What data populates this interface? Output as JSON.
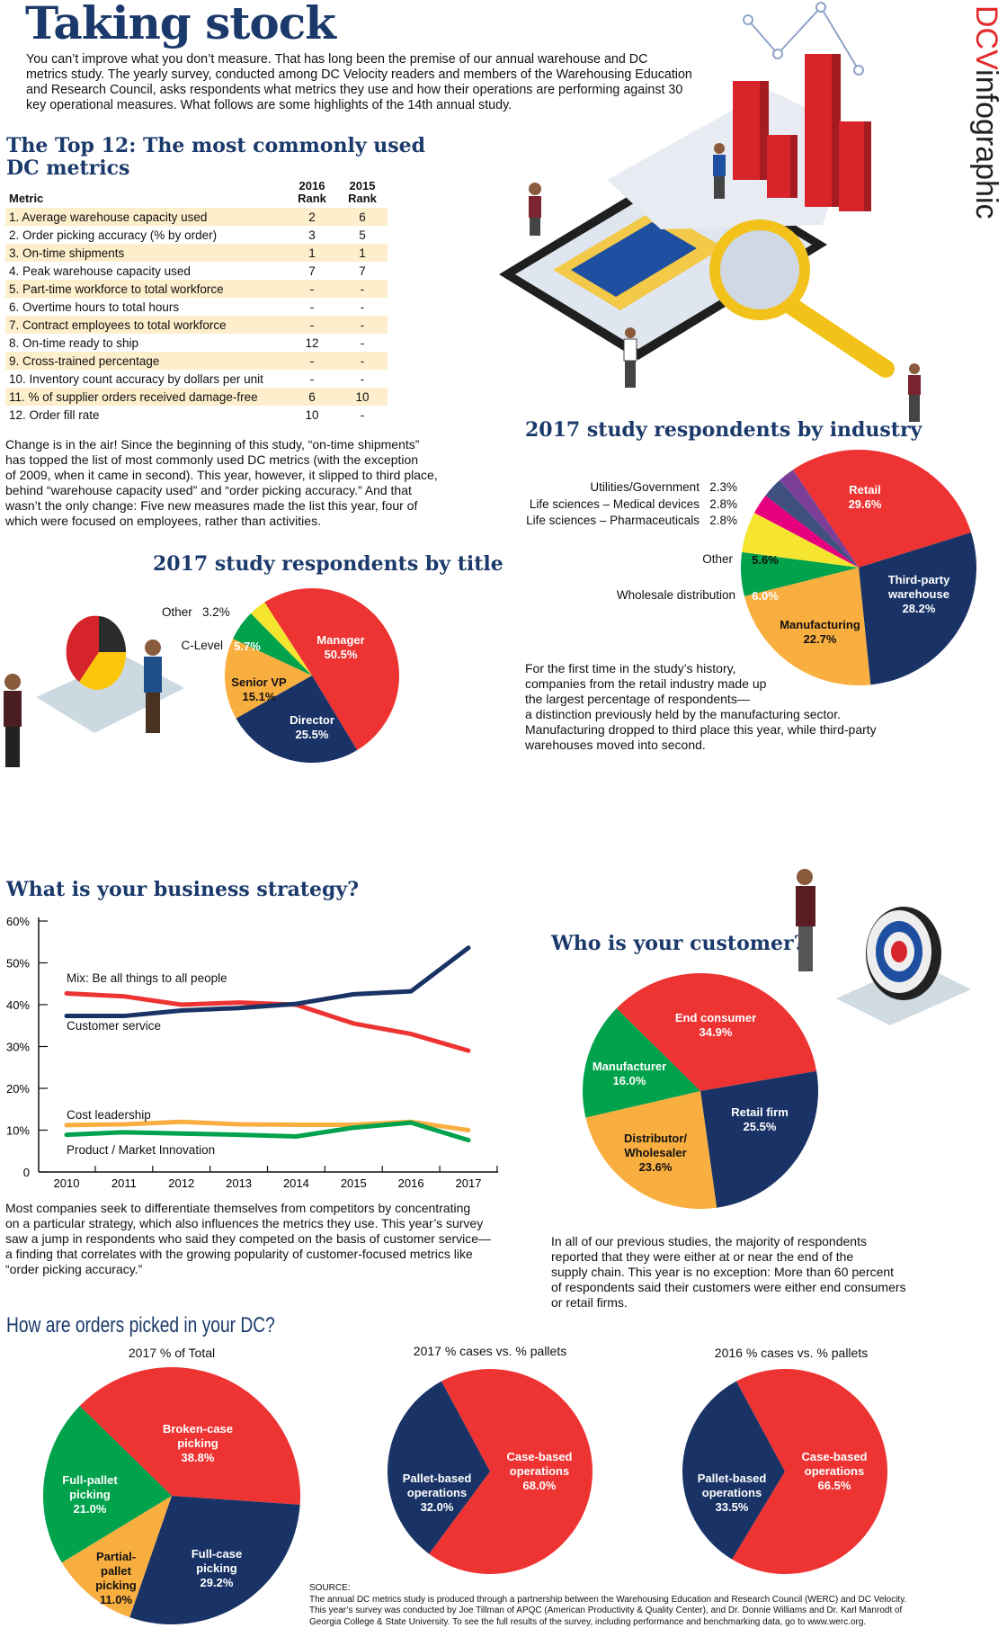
{
  "header": {
    "title": "Taking stock",
    "brand_red": "DCV",
    "brand_dark": "infographic",
    "intro": "You can’t improve what you don’t measure. That has long been the premise of our annual warehouse and DC\nmetrics study. The yearly survey, conducted among DC Velocity readers and members of the Warehousing Education\nand Research Council, asks respondents what metrics they use and how their operations are performing against 30\nkey operational measures. What follows are some highlights of the 14th annual study."
  },
  "top12": {
    "title": "The Top 12: The most commonly used\nDC metrics",
    "columns": [
      "Metric",
      "2016\nRank",
      "2015\nRank"
    ],
    "rows": [
      [
        "1. Average warehouse capacity used",
        "2",
        "6"
      ],
      [
        "2. Order picking accuracy (% by order)",
        "3",
        "5"
      ],
      [
        "3. On-time shipments",
        "1",
        "1"
      ],
      [
        "4. Peak warehouse capacity used",
        "7",
        "7"
      ],
      [
        "5. Part-time workforce to total workforce",
        "-",
        "-"
      ],
      [
        "6. Overtime hours to total hours",
        "-",
        "-"
      ],
      [
        "7. Contract employees to total workforce",
        "-",
        "-"
      ],
      [
        "8. On-time ready to ship",
        "12",
        "-"
      ],
      [
        "9. Cross-trained percentage",
        "-",
        "-"
      ],
      [
        "10. Inventory count accuracy by dollars per unit",
        "-",
        "-"
      ],
      [
        "11. % of supplier orders received damage-free",
        "6",
        "10"
      ],
      [
        "12. Order fill rate",
        "10",
        "-"
      ]
    ],
    "paragraph": "Change is in the air! Since the beginning of this study, “on-time shipments”\nhas topped the list of most commonly used DC metrics (with the exception\nof 2009, when it came in second). This year, however, it slipped to third place,\nbehind “warehouse capacity used” and “order picking accuracy.” And that\nwasn’t the only change: Five new measures made the list this year, four of\nwhich were focused on employees, rather than activities."
  },
  "industry_text": "For the first time in the study’s history,\ncompanies from the retail industry made up\nthe largest percentage of respondents—\na distinction previously held by the manufacturing sector.\nManufacturing dropped to third place this year, while third-party\nwarehouses moved into second.",
  "strategy_text": "Most companies seek to differentiate themselves from competitors by concentrating\non a particular strategy, which also influences the metrics they use. This year’s survey\nsaw a jump in respondents who said they competed on the basis of customer service—\na finding that correlates with the growing popularity of customer-focused metrics like\n“order picking accuracy.”",
  "customer_text": "In all of our previous studies, the majority of respondents\nreported that they were either at or near the end of the\nsupply chain. This year is no exception: More than 60 percent\nof respondents said their customers were either end consumers\nor retail firms.",
  "picking_title": "How are orders picked in your DC?",
  "source": {
    "label": "SOURCE:",
    "text": "The annual DC metrics study is produced through a partnership between the Warehousing Education and Research Council (WERC) and DC Velocity.\nThis year’s survey was conducted by Joe Tillman of APQC (American Productivity & Quality Center), and Dr. Donnie Williams and Dr. Karl Manrodt of\nGeorgia College & State University. To see the full results of the survey, including performance and benchmarking data, go to www.werc.org."
  },
  "colors": {
    "title_navy": "#1b3a6b",
    "red": "#ee3333",
    "navy": "#1a3366",
    "orange": "#f9ae40",
    "green": "#00a24b",
    "yellow": "#f5e52f",
    "pink": "#e6007e",
    "slate": "#3f4f7f",
    "purple": "#7b3f98"
  },
  "chart_data": [
    {
      "type": "pie",
      "title": "2017 study respondents by title",
      "start_deg": -33,
      "slices": [
        {
          "label": "Manager",
          "value": 50.5,
          "display": "50.5%",
          "color": "#ee3333"
        },
        {
          "label": "Director",
          "value": 25.5,
          "display": "25.5%",
          "color": "#1a3366"
        },
        {
          "label": "Senior VP",
          "value": 15.1,
          "display": "15.1%",
          "color": "#f9ae40"
        },
        {
          "label": "C-Level",
          "value": 5.7,
          "display": "5.7%",
          "color": "#00a24b"
        },
        {
          "label": "Other",
          "value": 3.2,
          "display": "3.2%",
          "color": "#f5e52f"
        }
      ]
    },
    {
      "type": "pie",
      "title": "2017 study respondents by industry",
      "start_deg": -33.9,
      "slices": [
        {
          "label": "Retail",
          "value": 29.6,
          "display": "29.6%",
          "color": "#ee3333"
        },
        {
          "label": "Third-party warehouse",
          "value": 28.2,
          "display": "28.2%",
          "color": "#1a3366"
        },
        {
          "label": "Manufacturing",
          "value": 22.7,
          "display": "22.7%",
          "color": "#f9ae40"
        },
        {
          "label": "Wholesale distribution",
          "value": 6.0,
          "display": "6.0%",
          "color": "#00a24b"
        },
        {
          "label": "Other",
          "value": 5.6,
          "display": "5.6%",
          "color": "#f5e52f"
        },
        {
          "label": "Life sciences – Pharmaceuticals",
          "value": 2.8,
          "display": "2.8%",
          "color": "#e6007e"
        },
        {
          "label": "Life sciences – Medical devices",
          "value": 2.8,
          "display": "2.8%",
          "color": "#3f4f7f"
        },
        {
          "label": "Utilities/Government",
          "value": 2.3,
          "display": "2.3%",
          "color": "#7b3f98"
        }
      ]
    },
    {
      "type": "line",
      "title": "What is your business strategy?",
      "x": [
        "2010",
        "2011",
        "2012",
        "2013",
        "2014",
        "2015",
        "2016",
        "2017"
      ],
      "ylim": [
        0,
        60
      ],
      "yticks": [
        "0",
        "10%",
        "20%",
        "30%",
        "40%",
        "50%",
        "60%"
      ],
      "series": [
        {
          "name": "Customer service",
          "color": "#1a3366",
          "values": [
            37.3,
            37.3,
            38.6,
            39.2,
            40.2,
            42.5,
            43.2,
            53.6
          ]
        },
        {
          "name": "Mix: Be all things to all people",
          "color": "#ee3333",
          "values": [
            42.7,
            42.0,
            40.0,
            40.5,
            40.0,
            35.5,
            33.0,
            29.0
          ]
        },
        {
          "name": "Cost leadership",
          "color": "#f9ae40",
          "values": [
            11.2,
            11.4,
            12.0,
            11.4,
            11.3,
            11.3,
            12.0,
            10.0
          ]
        },
        {
          "name": "Product / Market Innovation",
          "color": "#00a24b",
          "values": [
            8.9,
            9.5,
            9.2,
            8.9,
            8.5,
            10.6,
            11.8,
            7.6
          ]
        }
      ]
    },
    {
      "type": "pie",
      "title": "Who is your customer?",
      "start_deg": -45.4,
      "slices": [
        {
          "label": "End consumer",
          "value": 34.9,
          "display": "34.9%",
          "color": "#ee3333"
        },
        {
          "label": "Retail firm",
          "value": 25.5,
          "display": "25.5%",
          "color": "#1a3366"
        },
        {
          "label": "Distributor/\nWholesaler",
          "value": 23.6,
          "display": "23.6%",
          "color": "#f9ae40"
        },
        {
          "label": "Manufacturer",
          "value": 16.0,
          "display": "16.0%",
          "color": "#00a24b"
        }
      ]
    },
    {
      "type": "pie",
      "title": "2017 % of Total",
      "start_deg": -45.7,
      "slices": [
        {
          "label": "Broken-case\npicking",
          "value": 38.8,
          "display": "38.8%",
          "color": "#ee3333"
        },
        {
          "label": "Full-case\npicking",
          "value": 29.2,
          "display": "29.2%",
          "color": "#1a3366"
        },
        {
          "label": "Partial-\npallet\npicking",
          "value": 11.0,
          "display": "11.0%",
          "color": "#f9ae40"
        },
        {
          "label": "Full-pallet\npicking",
          "value": 21.0,
          "display": "21.0%",
          "color": "#00a24b"
        }
      ]
    },
    {
      "type": "pie",
      "title": "2017 % cases vs. % pallets",
      "start_deg": -28.3,
      "slices": [
        {
          "label": "Case-based\noperations",
          "value": 68.0,
          "display": "68.0%",
          "color": "#ee3333"
        },
        {
          "label": "Pallet-based\noperations",
          "value": 32.0,
          "display": "32.0%",
          "color": "#1a3366"
        }
      ]
    },
    {
      "type": "pie",
      "title": "2016 % cases vs. % pallets",
      "start_deg": -28.3,
      "slices": [
        {
          "label": "Case-based\noperations",
          "value": 66.5,
          "display": "66.5%",
          "color": "#ee3333"
        },
        {
          "label": "Pallet-based\noperations",
          "value": 33.5,
          "display": "33.5%",
          "color": "#1a3366"
        }
      ]
    }
  ]
}
